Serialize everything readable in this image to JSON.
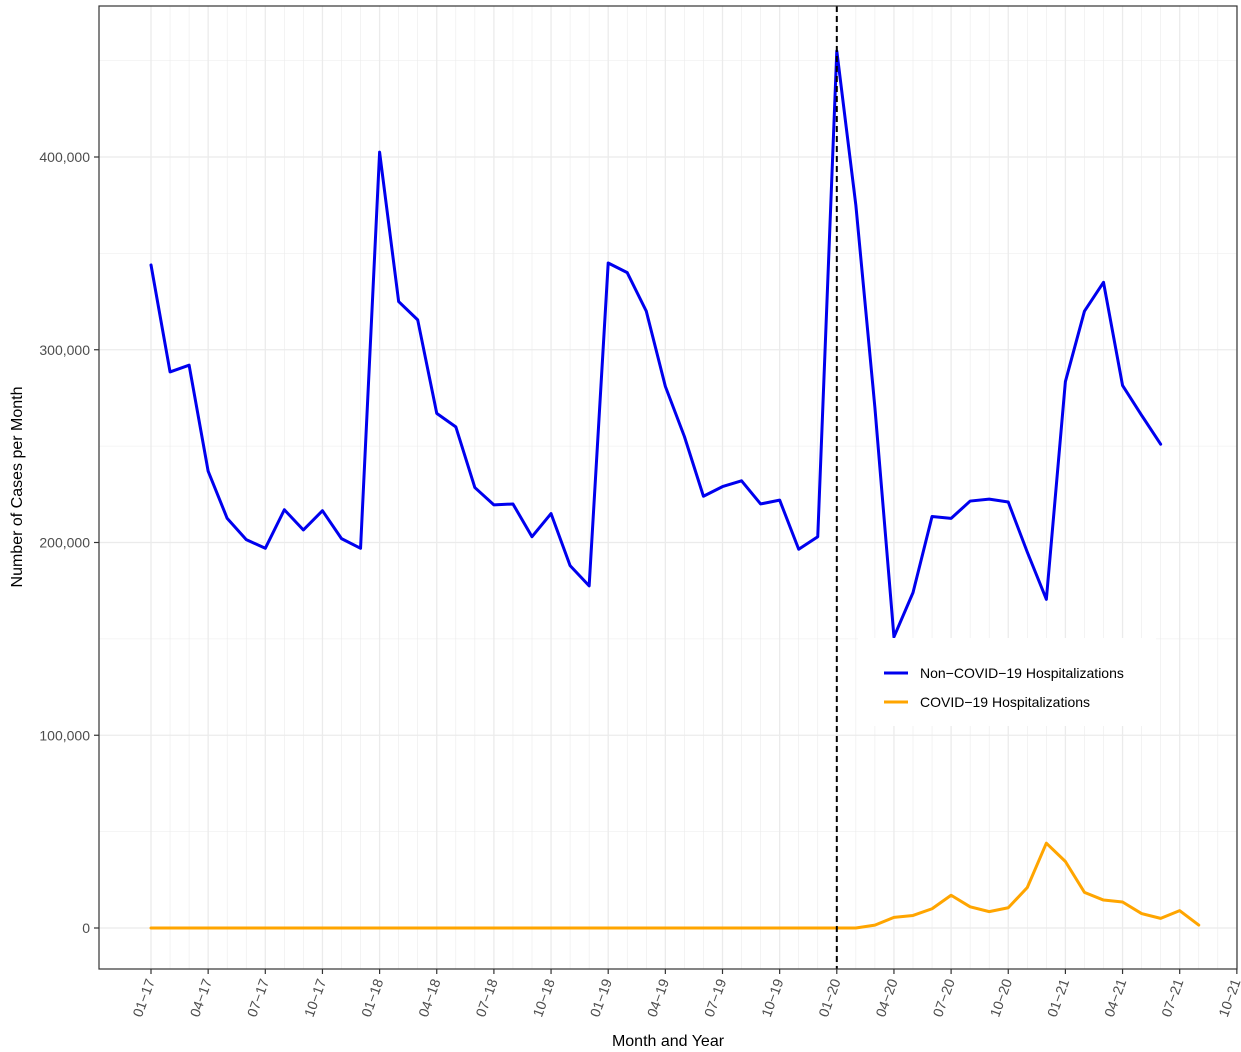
{
  "chart_data": {
    "type": "line",
    "xlabel": "Month and Year",
    "ylabel": "Number of Cases per Month",
    "ylim": [
      -20000,
      480000
    ],
    "grid": true,
    "legend_position": "right",
    "x_ticks": [
      "01-17",
      "04-17",
      "07-17",
      "10-17",
      "01-18",
      "04-18",
      "07-18",
      "10-18",
      "01-19",
      "04-19",
      "07-19",
      "10-19",
      "01-20",
      "04-20",
      "07-20",
      "10-20",
      "01-21",
      "04-21",
      "07-21",
      "10-21"
    ],
    "y_ticks": [
      0,
      100000,
      200000,
      300000,
      400000
    ],
    "y_tick_labels": [
      "0",
      "100,000",
      "200,000",
      "300,000",
      "400,000"
    ],
    "reference_line": {
      "x": "01-20",
      "style": "dashed"
    },
    "series": [
      {
        "name": "Non−COVID−19 Hospitalizations",
        "color": "#0000ee",
        "start": "01-17",
        "values": [
          344000,
          288500,
          292000,
          237000,
          212500,
          201500,
          197000,
          217000,
          206500,
          216500,
          202000,
          197000,
          402500,
          325000,
          315500,
          267000,
          260000,
          228500,
          219500,
          220000,
          203000,
          215000,
          188000,
          177500,
          345000,
          340000,
          320000,
          281000,
          255000,
          224000,
          229000,
          232000,
          220000,
          222000,
          196500,
          203000,
          455000,
          375000,
          270000,
          151000,
          174000,
          213500,
          212500,
          221500,
          222500,
          221000,
          195000,
          170500,
          283500,
          320000,
          335000,
          281500,
          266000,
          251000
        ]
      },
      {
        "name": "COVID−19 Hospitalizations",
        "color": "#ffa500",
        "start": "01-17",
        "values": [
          0,
          0,
          0,
          0,
          0,
          0,
          0,
          0,
          0,
          0,
          0,
          0,
          0,
          0,
          0,
          0,
          0,
          0,
          0,
          0,
          0,
          0,
          0,
          0,
          0,
          0,
          0,
          0,
          0,
          0,
          0,
          0,
          0,
          0,
          0,
          0,
          0,
          0,
          1500,
          5500,
          6500,
          10000,
          17000,
          11000,
          8500,
          10500,
          21000,
          44000,
          34500,
          18500,
          14500,
          13500,
          7500,
          5000,
          9000,
          1500
        ]
      }
    ]
  }
}
